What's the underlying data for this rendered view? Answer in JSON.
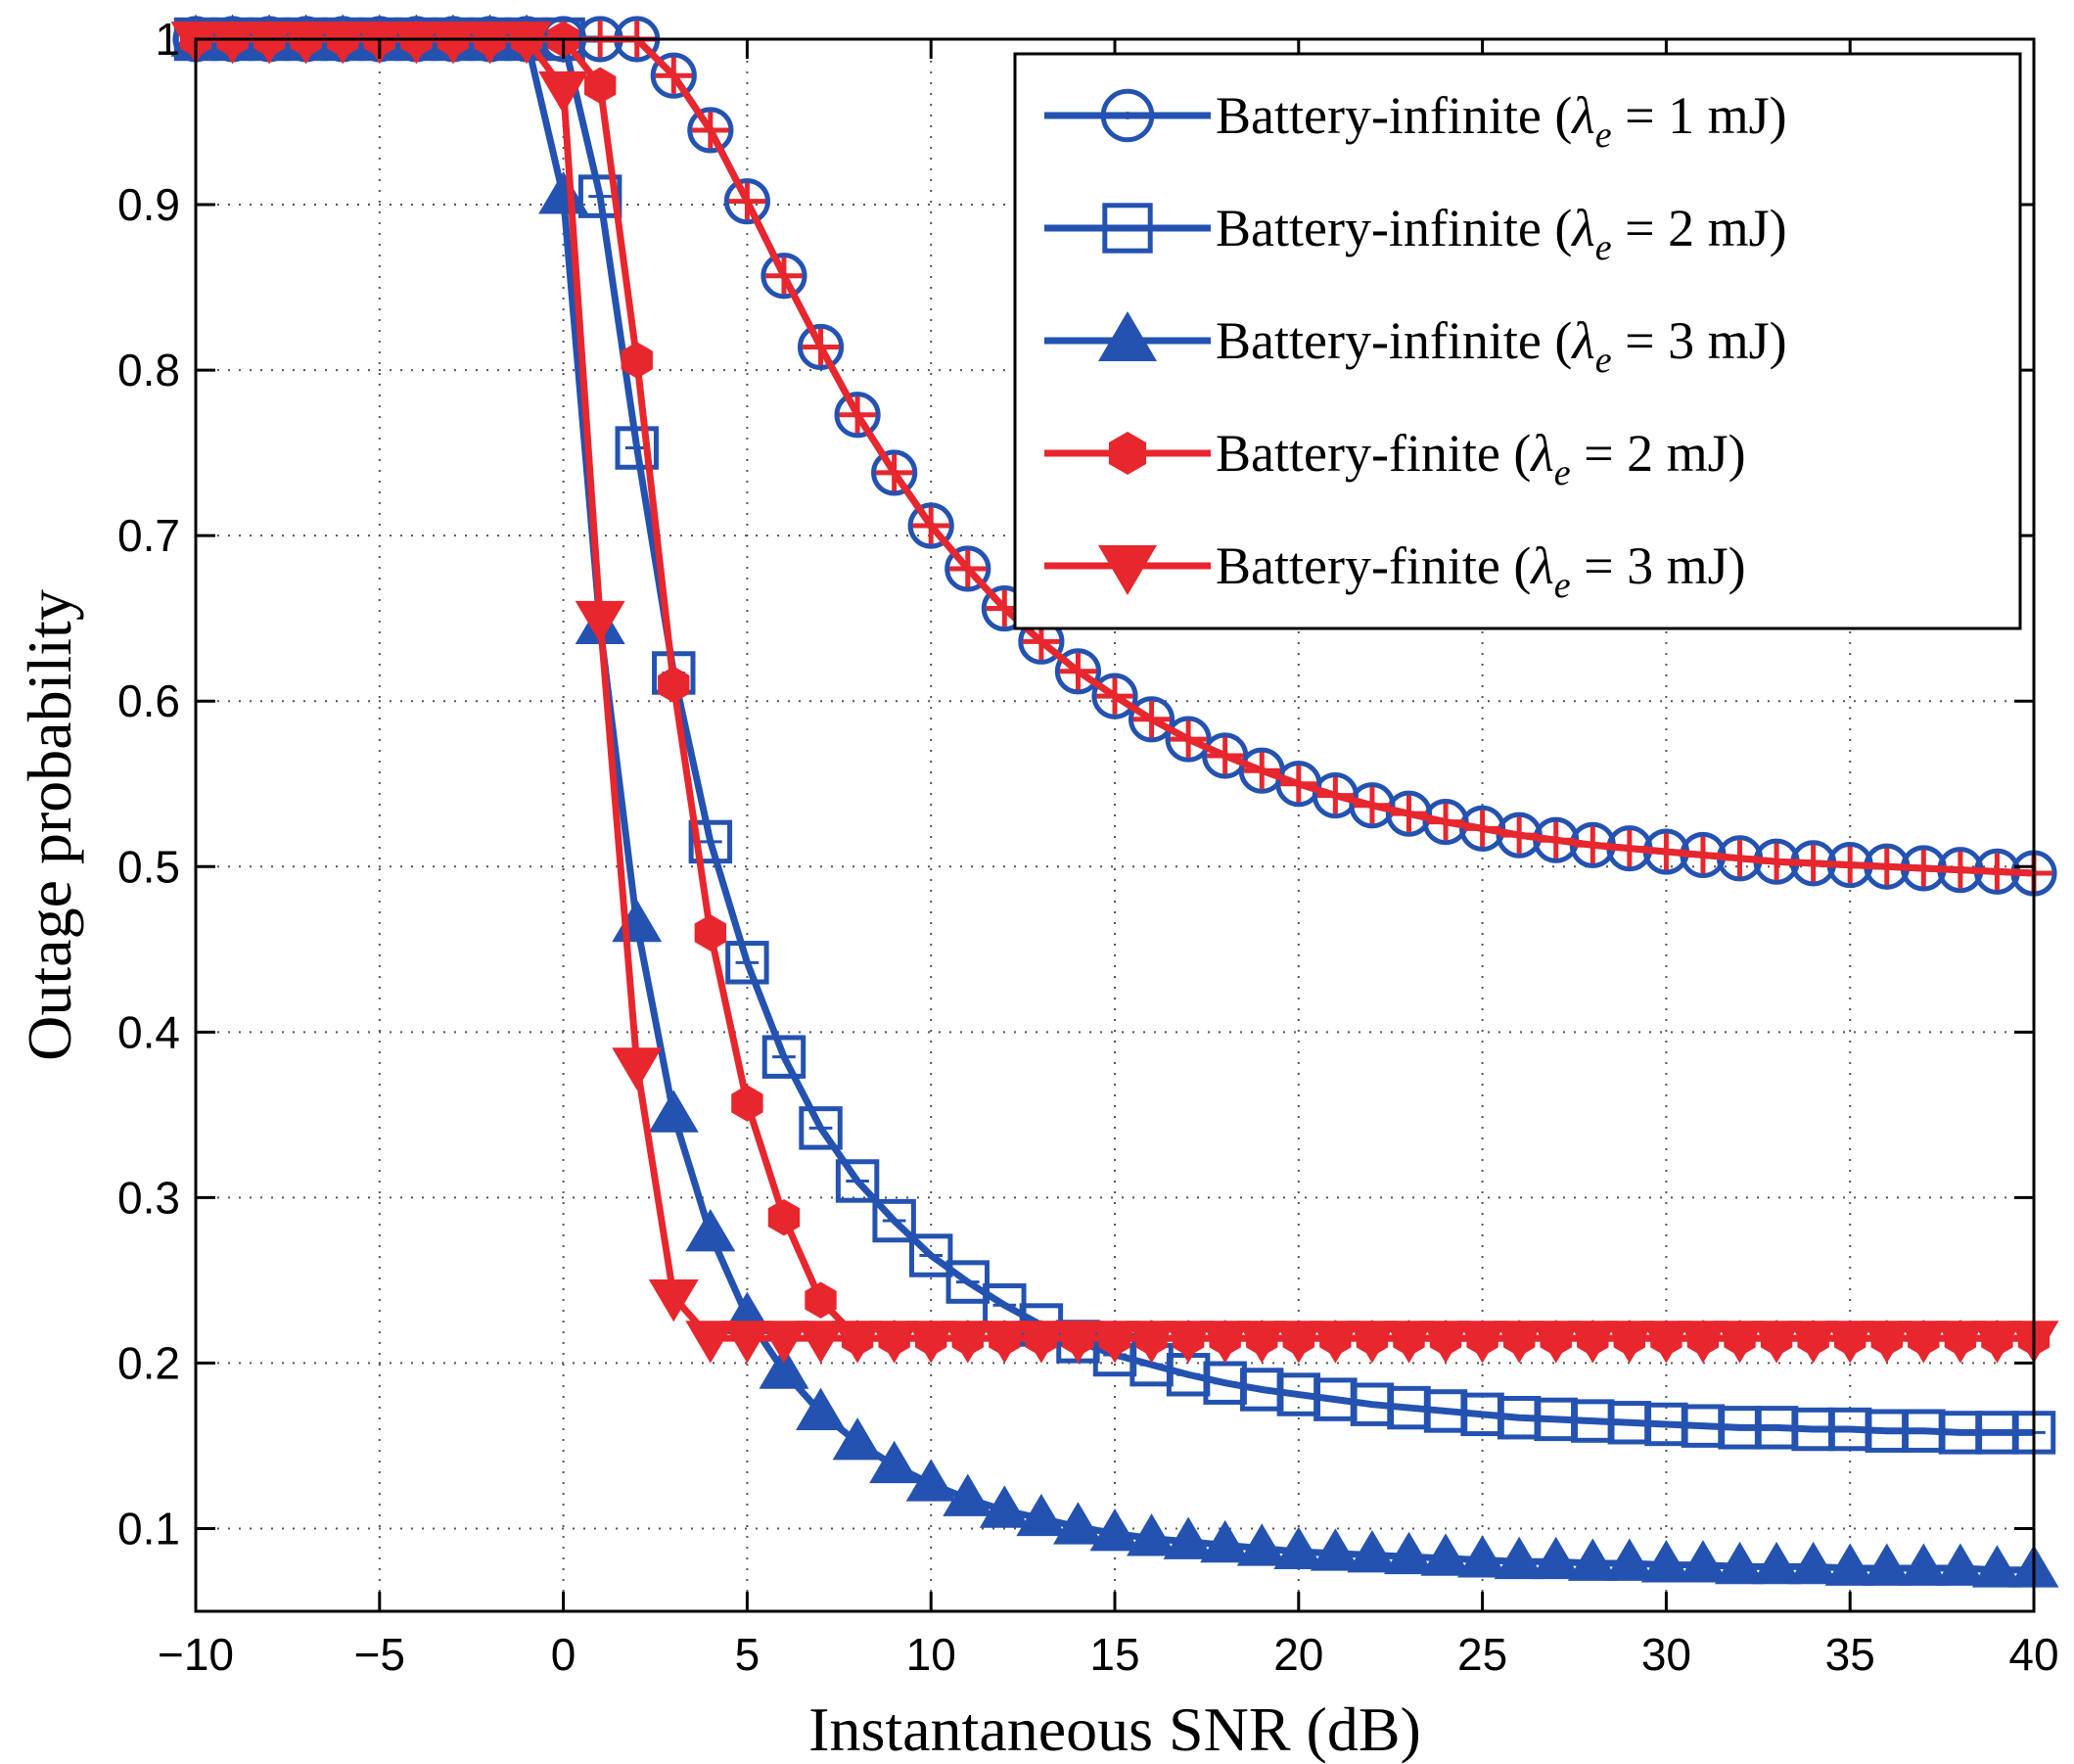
{
  "chart_data": {
    "type": "line",
    "title": "",
    "xlabel": "Instantaneous SNR (dB)",
    "ylabel": "Outage probability",
    "xlim": [
      -10,
      40
    ],
    "ylim": [
      0.05,
      1.0
    ],
    "xticks": [
      -10,
      -5,
      0,
      5,
      10,
      15,
      20,
      25,
      30,
      35,
      40
    ],
    "xtick_labels": [
      "−10",
      "−5",
      "0",
      "5",
      "10",
      "15",
      "20",
      "25",
      "30",
      "35",
      "40"
    ],
    "yticks": [
      0.1,
      0.2,
      0.3,
      0.4,
      0.5,
      0.6,
      0.7,
      0.8,
      0.9,
      1.0
    ],
    "ytick_labels": [
      "0.1",
      "0.2",
      "0.3",
      "0.4",
      "0.5",
      "0.6",
      "0.7",
      "0.8",
      "0.9",
      "1"
    ],
    "grid": true,
    "legend_position": "top-right",
    "x": [
      -10,
      -9,
      -8,
      -7,
      -6,
      -5,
      -4,
      -3,
      -2,
      -1,
      0,
      1,
      2,
      3,
      4,
      5,
      6,
      7,
      8,
      9,
      10,
      11,
      12,
      13,
      14,
      15,
      16,
      17,
      18,
      19,
      20,
      21,
      22,
      23,
      24,
      25,
      26,
      27,
      28,
      29,
      30,
      31,
      32,
      33,
      34,
      35,
      36,
      37,
      38,
      39,
      40
    ],
    "series": [
      {
        "name": "Battery-infinite (λ_e = 1 mJ)",
        "legend_label": "Battery-infinite (",
        "legend_var": "λ",
        "legend_sub": "e",
        "legend_rest": " = 1 mJ)",
        "color": "#2452b1",
        "marker": "circle",
        "values": [
          1,
          1,
          1,
          1,
          1,
          1,
          1,
          1,
          1,
          1,
          1,
          1,
          1,
          0.978,
          0.945,
          0.902,
          0.857,
          0.814,
          0.773,
          0.738,
          0.706,
          0.68,
          0.656,
          0.636,
          0.618,
          0.603,
          0.589,
          0.577,
          0.567,
          0.558,
          0.55,
          0.543,
          0.537,
          0.532,
          0.527,
          0.523,
          0.519,
          0.516,
          0.513,
          0.511,
          0.509,
          0.507,
          0.505,
          0.503,
          0.502,
          0.501,
          0.5,
          0.499,
          0.498,
          0.497,
          0.496
        ]
      },
      {
        "name": "Battery-infinite (λ_e = 2 mJ)",
        "legend_label": "Battery-infinite (",
        "legend_var": "λ",
        "legend_sub": "e",
        "legend_rest": " = 2 mJ)",
        "color": "#2452b1",
        "marker": "square",
        "values": [
          1,
          1,
          1,
          1,
          1,
          1,
          1,
          1,
          1,
          1,
          1,
          0.905,
          0.753,
          0.617,
          0.515,
          0.442,
          0.385,
          0.342,
          0.31,
          0.286,
          0.265,
          0.249,
          0.235,
          0.223,
          0.213,
          0.205,
          0.199,
          0.193,
          0.188,
          0.184,
          0.181,
          0.178,
          0.175,
          0.173,
          0.171,
          0.169,
          0.167,
          0.166,
          0.165,
          0.164,
          0.163,
          0.162,
          0.161,
          0.161,
          0.16,
          0.16,
          0.159,
          0.159,
          0.158,
          0.158,
          0.158
        ]
      },
      {
        "name": "Battery-infinite (λ_e = 3 mJ)",
        "legend_label": "Battery-infinite (",
        "legend_var": "λ",
        "legend_sub": "e",
        "legend_rest": " = 3 mJ)",
        "color": "#2452b1",
        "marker": "triangle-up",
        "values": [
          1,
          1,
          1,
          1,
          1,
          1,
          1,
          1,
          1,
          1,
          0.905,
          0.645,
          0.465,
          0.35,
          0.278,
          0.228,
          0.195,
          0.17,
          0.152,
          0.138,
          0.127,
          0.118,
          0.111,
          0.106,
          0.101,
          0.097,
          0.094,
          0.092,
          0.09,
          0.088,
          0.086,
          0.085,
          0.084,
          0.083,
          0.082,
          0.081,
          0.08,
          0.08,
          0.079,
          0.079,
          0.078,
          0.078,
          0.077,
          0.077,
          0.077,
          0.076,
          0.076,
          0.076,
          0.076,
          0.075,
          0.075
        ]
      },
      {
        "name": "Battery-finite (λ_e = 2 mJ)",
        "legend_label": "Battery-finite (",
        "legend_var": "λ",
        "legend_sub": "e",
        "legend_rest": " = 2 mJ)",
        "color": "#e8262d",
        "marker": "hexagon",
        "values": [
          1,
          1,
          1,
          1,
          1,
          1,
          1,
          1,
          1,
          1,
          1,
          0.972,
          0.806,
          0.61,
          0.46,
          0.357,
          0.288,
          0.238,
          0.215,
          0.215,
          0.215,
          0.215,
          0.215,
          0.215,
          0.215,
          0.215,
          0.215,
          0.215,
          0.215,
          0.215,
          0.215,
          0.215,
          0.215,
          0.215,
          0.215,
          0.215,
          0.215,
          0.215,
          0.215,
          0.215,
          0.215,
          0.215,
          0.215,
          0.215,
          0.215,
          0.215,
          0.215,
          0.215,
          0.215,
          0.215,
          0.215
        ]
      },
      {
        "name": "Battery-finite (λ_e = 3 mJ)",
        "legend_label": "Battery-finite (",
        "legend_var": "λ",
        "legend_sub": "e",
        "legend_rest": " = 3 mJ)",
        "color": "#e8262d",
        "marker": "triangle-down",
        "values": [
          1,
          1,
          1,
          1,
          1,
          1,
          1,
          1,
          1,
          1,
          0.97,
          0.65,
          0.38,
          0.24,
          0.215,
          0.215,
          0.215,
          0.215,
          0.215,
          0.215,
          0.215,
          0.215,
          0.215,
          0.215,
          0.215,
          0.215,
          0.215,
          0.215,
          0.215,
          0.215,
          0.215,
          0.215,
          0.215,
          0.215,
          0.215,
          0.215,
          0.215,
          0.215,
          0.215,
          0.215,
          0.215,
          0.215,
          0.215,
          0.215,
          0.215,
          0.215,
          0.215,
          0.215,
          0.215,
          0.215,
          0.215
        ]
      }
    ],
    "overlay": [
      {
        "series_index": 3,
        "marker": "plus",
        "x_range": [
          1,
          40
        ],
        "on_series": 0,
        "note": "red line over blue circles for battery-finite 1 mJ-equivalent region"
      }
    ]
  }
}
